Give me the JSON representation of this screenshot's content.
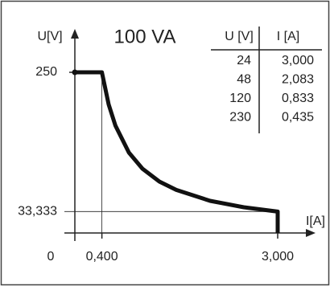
{
  "chart_data": {
    "type": "line",
    "annotation": "100 VA",
    "ylabel": "U[V]",
    "xlabel": "I[A]",
    "x": [
      0,
      0.4,
      0.5,
      0.6,
      0.8,
      1,
      1.25,
      1.5,
      2,
      2.5,
      3,
      3
    ],
    "values": [
      250,
      250,
      200,
      167,
      125,
      100,
      80,
      67,
      50,
      40,
      33.333,
      0
    ],
    "color": "#111111",
    "xlim": [
      0,
      3.5
    ],
    "ylim": [
      0,
      250
    ],
    "xticks": [
      {
        "value": 0.4,
        "label": "0,400"
      },
      {
        "value": 3,
        "label": "3,000"
      }
    ],
    "yticks": [
      0,
      {
        "value": 33.333,
        "label": "33,333"
      },
      250
    ],
    "table": {
      "headers": [
        "U [V]",
        "I [A]"
      ],
      "rows": [
        [
          "24",
          "3,000"
        ],
        [
          "48",
          "2,083"
        ],
        [
          "120",
          "0,833"
        ],
        [
          "230",
          "0,435"
        ]
      ]
    }
  }
}
